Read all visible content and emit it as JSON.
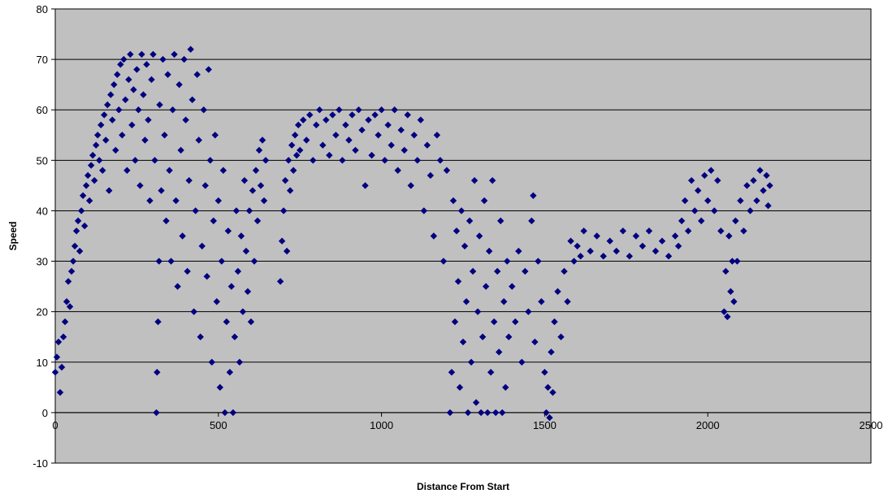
{
  "chart_data": {
    "type": "scatter",
    "title": "",
    "xlabel": "Distance From Start",
    "ylabel": "Speed",
    "xlim": [
      0,
      2500
    ],
    "ylim": [
      -10,
      80
    ],
    "x_ticks": [
      0,
      500,
      1000,
      1500,
      2000,
      2500
    ],
    "y_ticks": [
      -10,
      0,
      10,
      20,
      30,
      40,
      50,
      60,
      70,
      80
    ],
    "x_tick_labels": [
      "0",
      "500",
      "1000",
      "1500",
      "2000",
      "2500"
    ],
    "y_tick_labels": [
      "-10",
      "0",
      "10",
      "20",
      "30",
      "40",
      "50",
      "60",
      "70",
      "80"
    ],
    "grid": true,
    "legend": "none",
    "colors": {
      "plot_background": "#c0c0c0",
      "marker": "#000080",
      "gridline": "#000000",
      "axis": "#000000"
    },
    "marker_shape": "diamond",
    "series": [
      {
        "points": [
          [
            0,
            8
          ],
          [
            5,
            11
          ],
          [
            10,
            14
          ],
          [
            15,
            4
          ],
          [
            20,
            9
          ],
          [
            25,
            15
          ],
          [
            30,
            18
          ],
          [
            35,
            22
          ],
          [
            40,
            26
          ],
          [
            45,
            21
          ],
          [
            50,
            28
          ],
          [
            55,
            30
          ],
          [
            60,
            33
          ],
          [
            65,
            36
          ],
          [
            70,
            38
          ],
          [
            75,
            32
          ],
          [
            80,
            40
          ],
          [
            85,
            43
          ],
          [
            90,
            37
          ],
          [
            95,
            45
          ],
          [
            100,
            47
          ],
          [
            105,
            42
          ],
          [
            110,
            49
          ],
          [
            115,
            51
          ],
          [
            120,
            46
          ],
          [
            125,
            53
          ],
          [
            130,
            55
          ],
          [
            135,
            50
          ],
          [
            140,
            57
          ],
          [
            145,
            48
          ],
          [
            150,
            59
          ],
          [
            155,
            54
          ],
          [
            160,
            61
          ],
          [
            165,
            44
          ],
          [
            170,
            63
          ],
          [
            175,
            58
          ],
          [
            180,
            65
          ],
          [
            185,
            52
          ],
          [
            190,
            67
          ],
          [
            195,
            60
          ],
          [
            200,
            69
          ],
          [
            205,
            55
          ],
          [
            210,
            70
          ],
          [
            215,
            62
          ],
          [
            220,
            48
          ],
          [
            225,
            66
          ],
          [
            230,
            71
          ],
          [
            235,
            57
          ],
          [
            240,
            64
          ],
          [
            245,
            50
          ],
          [
            250,
            68
          ],
          [
            255,
            60
          ],
          [
            260,
            45
          ],
          [
            265,
            71
          ],
          [
            270,
            63
          ],
          [
            275,
            54
          ],
          [
            280,
            69
          ],
          [
            285,
            58
          ],
          [
            290,
            42
          ],
          [
            295,
            66
          ],
          [
            300,
            71
          ],
          [
            305,
            50
          ],
          [
            310,
            0
          ],
          [
            312,
            8
          ],
          [
            315,
            18
          ],
          [
            318,
            30
          ],
          [
            320,
            61
          ],
          [
            325,
            44
          ],
          [
            330,
            70
          ],
          [
            335,
            55
          ],
          [
            340,
            38
          ],
          [
            345,
            67
          ],
          [
            350,
            48
          ],
          [
            355,
            30
          ],
          [
            360,
            60
          ],
          [
            365,
            71
          ],
          [
            370,
            42
          ],
          [
            375,
            25
          ],
          [
            380,
            65
          ],
          [
            385,
            52
          ],
          [
            390,
            35
          ],
          [
            395,
            70
          ],
          [
            400,
            58
          ],
          [
            405,
            28
          ],
          [
            410,
            46
          ],
          [
            415,
            72
          ],
          [
            420,
            62
          ],
          [
            425,
            20
          ],
          [
            430,
            40
          ],
          [
            435,
            67
          ],
          [
            440,
            54
          ],
          [
            445,
            15
          ],
          [
            450,
            33
          ],
          [
            455,
            60
          ],
          [
            460,
            45
          ],
          [
            465,
            27
          ],
          [
            470,
            68
          ],
          [
            475,
            50
          ],
          [
            480,
            10
          ],
          [
            485,
            38
          ],
          [
            490,
            55
          ],
          [
            495,
            22
          ],
          [
            500,
            42
          ],
          [
            505,
            5
          ],
          [
            510,
            30
          ],
          [
            515,
            48
          ],
          [
            520,
            0
          ],
          [
            525,
            18
          ],
          [
            530,
            36
          ],
          [
            535,
            8
          ],
          [
            540,
            25
          ],
          [
            545,
            0
          ],
          [
            550,
            15
          ],
          [
            555,
            40
          ],
          [
            560,
            28
          ],
          [
            565,
            10
          ],
          [
            570,
            35
          ],
          [
            575,
            20
          ],
          [
            580,
            46
          ],
          [
            585,
            32
          ],
          [
            590,
            24
          ],
          [
            595,
            40
          ],
          [
            600,
            18
          ],
          [
            605,
            44
          ],
          [
            610,
            30
          ],
          [
            615,
            48
          ],
          [
            620,
            38
          ],
          [
            625,
            52
          ],
          [
            630,
            45
          ],
          [
            635,
            54
          ],
          [
            640,
            42
          ],
          [
            645,
            50
          ],
          [
            690,
            26
          ],
          [
            695,
            34
          ],
          [
            700,
            40
          ],
          [
            705,
            46
          ],
          [
            710,
            32
          ],
          [
            715,
            50
          ],
          [
            720,
            44
          ],
          [
            725,
            53
          ],
          [
            730,
            48
          ],
          [
            735,
            55
          ],
          [
            740,
            51
          ],
          [
            745,
            57
          ],
          [
            750,
            52
          ],
          [
            760,
            58
          ],
          [
            770,
            54
          ],
          [
            780,
            59
          ],
          [
            790,
            50
          ],
          [
            800,
            57
          ],
          [
            810,
            60
          ],
          [
            820,
            53
          ],
          [
            830,
            58
          ],
          [
            840,
            51
          ],
          [
            850,
            59
          ],
          [
            860,
            55
          ],
          [
            870,
            60
          ],
          [
            880,
            50
          ],
          [
            890,
            57
          ],
          [
            900,
            54
          ],
          [
            910,
            59
          ],
          [
            920,
            52
          ],
          [
            930,
            60
          ],
          [
            940,
            56
          ],
          [
            950,
            45
          ],
          [
            960,
            58
          ],
          [
            970,
            51
          ],
          [
            980,
            59
          ],
          [
            990,
            55
          ],
          [
            1000,
            60
          ],
          [
            1010,
            50
          ],
          [
            1020,
            57
          ],
          [
            1030,
            53
          ],
          [
            1040,
            60
          ],
          [
            1050,
            48
          ],
          [
            1060,
            56
          ],
          [
            1070,
            52
          ],
          [
            1080,
            59
          ],
          [
            1090,
            45
          ],
          [
            1100,
            55
          ],
          [
            1110,
            50
          ],
          [
            1120,
            58
          ],
          [
            1130,
            40
          ],
          [
            1140,
            53
          ],
          [
            1150,
            47
          ],
          [
            1160,
            35
          ],
          [
            1170,
            55
          ],
          [
            1180,
            50
          ],
          [
            1190,
            30
          ],
          [
            1200,
            48
          ],
          [
            1210,
            0
          ],
          [
            1215,
            8
          ],
          [
            1220,
            42
          ],
          [
            1225,
            18
          ],
          [
            1230,
            36
          ],
          [
            1235,
            26
          ],
          [
            1240,
            5
          ],
          [
            1245,
            40
          ],
          [
            1250,
            14
          ],
          [
            1255,
            33
          ],
          [
            1260,
            22
          ],
          [
            1265,
            0
          ],
          [
            1270,
            38
          ],
          [
            1275,
            10
          ],
          [
            1280,
            28
          ],
          [
            1285,
            46
          ],
          [
            1290,
            2
          ],
          [
            1295,
            20
          ],
          [
            1300,
            35
          ],
          [
            1305,
            0
          ],
          [
            1310,
            15
          ],
          [
            1315,
            42
          ],
          [
            1320,
            25
          ],
          [
            1325,
            0
          ],
          [
            1330,
            32
          ],
          [
            1335,
            8
          ],
          [
            1340,
            46
          ],
          [
            1345,
            18
          ],
          [
            1350,
            0
          ],
          [
            1355,
            28
          ],
          [
            1360,
            12
          ],
          [
            1365,
            38
          ],
          [
            1370,
            0
          ],
          [
            1375,
            22
          ],
          [
            1380,
            5
          ],
          [
            1385,
            30
          ],
          [
            1390,
            15
          ],
          [
            1400,
            25
          ],
          [
            1410,
            18
          ],
          [
            1420,
            32
          ],
          [
            1430,
            10
          ],
          [
            1440,
            28
          ],
          [
            1450,
            20
          ],
          [
            1460,
            38
          ],
          [
            1465,
            43
          ],
          [
            1470,
            14
          ],
          [
            1480,
            30
          ],
          [
            1490,
            22
          ],
          [
            1500,
            8
          ],
          [
            1505,
            0
          ],
          [
            1510,
            5
          ],
          [
            1515,
            -1
          ],
          [
            1520,
            12
          ],
          [
            1525,
            4
          ],
          [
            1530,
            18
          ],
          [
            1540,
            24
          ],
          [
            1550,
            15
          ],
          [
            1560,
            28
          ],
          [
            1570,
            22
          ],
          [
            1580,
            34
          ],
          [
            1590,
            30
          ],
          [
            1600,
            33
          ],
          [
            1610,
            31
          ],
          [
            1620,
            36
          ],
          [
            1640,
            32
          ],
          [
            1660,
            35
          ],
          [
            1680,
            31
          ],
          [
            1700,
            34
          ],
          [
            1720,
            32
          ],
          [
            1740,
            36
          ],
          [
            1760,
            31
          ],
          [
            1780,
            35
          ],
          [
            1800,
            33
          ],
          [
            1820,
            36
          ],
          [
            1840,
            32
          ],
          [
            1860,
            34
          ],
          [
            1880,
            31
          ],
          [
            1900,
            35
          ],
          [
            1910,
            33
          ],
          [
            1920,
            38
          ],
          [
            1930,
            42
          ],
          [
            1940,
            36
          ],
          [
            1950,
            46
          ],
          [
            1960,
            40
          ],
          [
            1970,
            44
          ],
          [
            1980,
            38
          ],
          [
            1990,
            47
          ],
          [
            2000,
            42
          ],
          [
            2010,
            48
          ],
          [
            2020,
            40
          ],
          [
            2030,
            46
          ],
          [
            2040,
            36
          ],
          [
            2050,
            20
          ],
          [
            2055,
            28
          ],
          [
            2060,
            19
          ],
          [
            2065,
            35
          ],
          [
            2070,
            24
          ],
          [
            2075,
            30
          ],
          [
            2080,
            22
          ],
          [
            2085,
            38
          ],
          [
            2090,
            30
          ],
          [
            2100,
            42
          ],
          [
            2110,
            36
          ],
          [
            2120,
            45
          ],
          [
            2130,
            40
          ],
          [
            2140,
            46
          ],
          [
            2150,
            42
          ],
          [
            2160,
            48
          ],
          [
            2170,
            44
          ],
          [
            2180,
            47
          ],
          [
            2185,
            41
          ],
          [
            2190,
            45
          ]
        ]
      }
    ]
  }
}
